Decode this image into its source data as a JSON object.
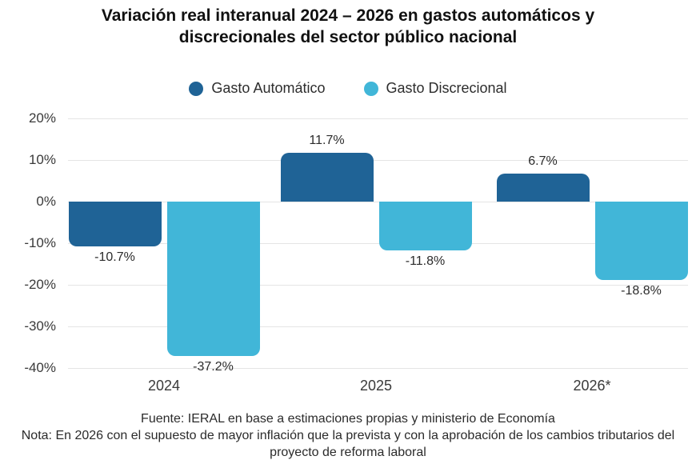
{
  "chart_data": {
    "type": "bar",
    "title": "Variación real interanual 2024 – 2026 en gastos automáticos y discrecionales del sector público nacional",
    "categories": [
      "2024",
      "2025",
      "2026*"
    ],
    "series": [
      {
        "name": "Gasto Automático",
        "color": "#1F6396",
        "values": [
          -10.7,
          11.7,
          6.7
        ],
        "labels": [
          "-10.7%",
          "11.7%",
          "6.7%"
        ]
      },
      {
        "name": "Gasto Discrecional",
        "color": "#41B6D8",
        "values": [
          -37.2,
          -11.8,
          -18.8
        ],
        "labels": [
          "-37.2%",
          "-11.8%",
          "-18.8%"
        ]
      }
    ],
    "yticks": [
      20,
      10,
      0,
      -10,
      -20,
      -30,
      -40
    ],
    "ytick_labels": [
      "20%",
      "10%",
      "0%",
      "-10%",
      "-20%",
      "-30%",
      "-40%"
    ],
    "ylim": [
      -40,
      20
    ],
    "ylabel": "",
    "xlabel": "",
    "grid": true,
    "legend_position": "top",
    "colors": {
      "background": "#ffffff",
      "gridline": "#e4e4e4",
      "title_text": "#111111",
      "label_text": "#2b2b2b"
    }
  },
  "footer": {
    "fuente": "Fuente: IERAL en base a estimaciones propias y ministerio de Economía",
    "nota": "Nota: En 2026 con el supuesto de mayor inflación que la prevista y con la aprobación de los cambios tributarios del proyecto de reforma laboral"
  }
}
